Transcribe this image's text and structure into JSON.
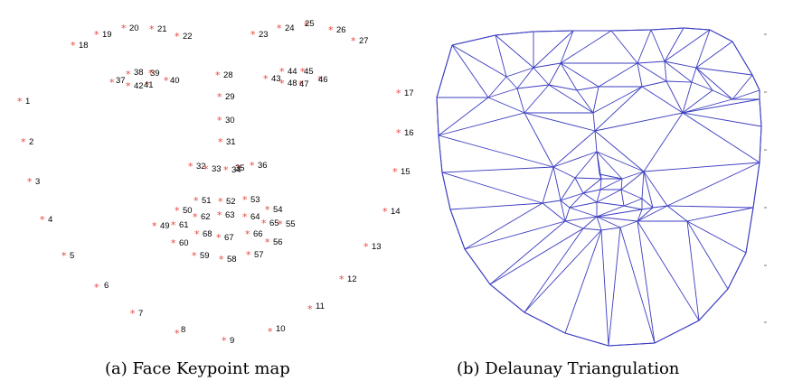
{
  "captions": {
    "a": "(a) Face Keypoint map",
    "b": "(b) Delaunay Triangulation"
  },
  "colors": {
    "keypoint_marker": "#e8473d",
    "keypoint_label": "#000000",
    "mesh_edge": "#3a3cc0"
  },
  "keypoints": {
    "marker": "*",
    "labels": [
      "1",
      "2",
      "3",
      "4",
      "5",
      "6",
      "7",
      "8",
      "9",
      "10",
      "11",
      "12",
      "13",
      "14",
      "15",
      "16",
      "17",
      "18",
      "19",
      "20",
      "21",
      "22",
      "23",
      "24",
      "25",
      "26",
      "27",
      "28",
      "29",
      "30",
      "31",
      "32",
      "33",
      "34",
      "35",
      "36",
      "37",
      "38",
      "39",
      "40",
      "41",
      "42",
      "43",
      "44",
      "45",
      "46",
      "47",
      "48",
      "49",
      "50",
      "51",
      "52",
      "53",
      "54",
      "55",
      "56",
      "57",
      "58",
      "59",
      "60",
      "61",
      "62",
      "63",
      "64",
      "65",
      "66",
      "67",
      "68"
    ]
  }
}
